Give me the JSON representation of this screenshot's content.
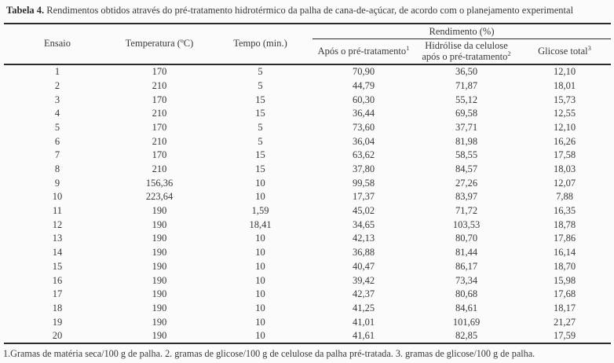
{
  "title": {
    "bold": "Tabela 4.",
    "rest": " Rendimentos obtidos através do pré-tratamento hidrotérmico da palha de cana-de-açúcar, de acordo com o planejamento experimental"
  },
  "table": {
    "group_header": "Rendimento (%)",
    "columns": {
      "ensaio": "Ensaio",
      "temperatura": "Temperatura (ºC)",
      "tempo": "Tempo (min.)",
      "apos": {
        "label": "Após o pré-tratamento",
        "sup": "1"
      },
      "hidrolise": {
        "line1": "Hidrólise da celulose",
        "line2": "após o pré-tratamento",
        "sup": "2"
      },
      "glicose": {
        "label": "Glicose total",
        "sup": "3"
      }
    },
    "rows": [
      [
        "1",
        "170",
        "5",
        "70,90",
        "36,50",
        "12,10"
      ],
      [
        "2",
        "210",
        "5",
        "44,79",
        "71,87",
        "18,01"
      ],
      [
        "3",
        "170",
        "15",
        "60,30",
        "55,12",
        "15,73"
      ],
      [
        "4",
        "210",
        "15",
        "36,44",
        "69,58",
        "12,55"
      ],
      [
        "5",
        "170",
        "5",
        "73,60",
        "37,71",
        "12,10"
      ],
      [
        "6",
        "210",
        "5",
        "36,04",
        "81,98",
        "16,26"
      ],
      [
        "7",
        "170",
        "15",
        "63,62",
        "58,55",
        "17,58"
      ],
      [
        "8",
        "210",
        "15",
        "37,80",
        "84,57",
        "18,03"
      ],
      [
        "9",
        "156,36",
        "10",
        "99,58",
        "27,26",
        "12,07"
      ],
      [
        "10",
        "223,64",
        "10",
        "17,37",
        "83,97",
        "7,88"
      ],
      [
        "11",
        "190",
        "1,59",
        "45,02",
        "71,72",
        "16,35"
      ],
      [
        "12",
        "190",
        "18,41",
        "34,65",
        "103,53",
        "18,78"
      ],
      [
        "13",
        "190",
        "10",
        "42,13",
        "80,70",
        "17,86"
      ],
      [
        "14",
        "190",
        "10",
        "36,88",
        "81,44",
        "16,14"
      ],
      [
        "15",
        "190",
        "10",
        "40,47",
        "86,17",
        "18,70"
      ],
      [
        "16",
        "190",
        "10",
        "39,42",
        "73,34",
        "15,98"
      ],
      [
        "17",
        "190",
        "10",
        "42,37",
        "80,68",
        "17,68"
      ],
      [
        "18",
        "190",
        "10",
        "41,25",
        "84,61",
        "18,17"
      ],
      [
        "19",
        "190",
        "10",
        "41,01",
        "101,69",
        "21,27"
      ],
      [
        "20",
        "190",
        "10",
        "41,61",
        "82,85",
        "17,59"
      ]
    ]
  },
  "footnote": "1.Gramas de matéria seca/100 g de palha. 2. gramas de glicose/100 g de celulose da palha pré-tratada. 3. gramas de glicose/100 g de palha.",
  "colors": {
    "text": "#383838",
    "rule": "#2a2a2a",
    "background": "#fbfbfb"
  }
}
